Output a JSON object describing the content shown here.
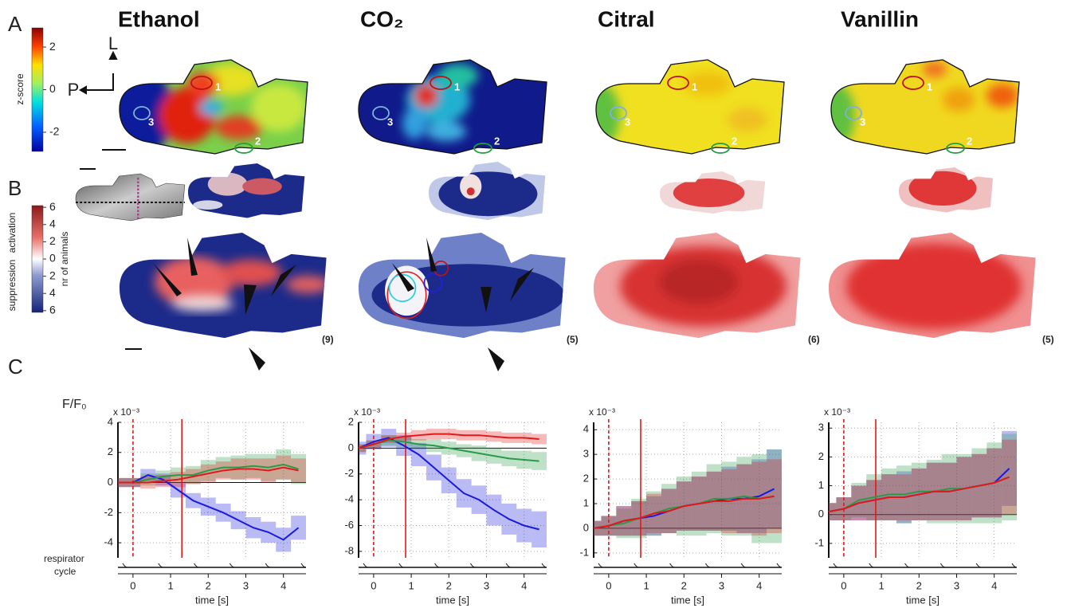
{
  "panel_labels": [
    "A",
    "B",
    "C"
  ],
  "odors": [
    "Ethanol",
    "CO₂",
    "Citral",
    "Vanillin"
  ],
  "orientation": {
    "lateral": "L",
    "posterior": "P"
  },
  "region_labels": [
    "1",
    "2",
    "3"
  ],
  "zscore_colorbar": {
    "label": "z-score",
    "lim": [
      -2.9,
      2.9
    ],
    "ticks": [
      2,
      0,
      -2
    ]
  },
  "animal_colorbar": {
    "label": "nr of animals",
    "suppression": "suppression",
    "activation": "activation",
    "lim": [
      -6.2,
      6.2
    ],
    "ticks": [
      6,
      4,
      2,
      0,
      {
        "value": -2,
        "label": "2"
      },
      {
        "value": -4,
        "label": "4"
      },
      {
        "value": -6,
        "label": "6"
      }
    ]
  },
  "animal_counts": [
    "(9)",
    "(5)",
    "(6)",
    "(5)"
  ],
  "trace_labels": {
    "ylabel": "F/F₀",
    "respirator_cycle": [
      "respirator",
      "cycle"
    ]
  },
  "chart_data": [
    {
      "type": "line",
      "multiplier": "x 10⁻³",
      "xlabel": "time [s]",
      "grid": true,
      "xlim": [
        -0.4,
        4.6
      ],
      "xticks": [
        0,
        1,
        2,
        3,
        4
      ],
      "ylim": [
        -5,
        4
      ],
      "yticks": [
        -4,
        -2,
        0,
        2,
        4
      ],
      "vlines": [
        {
          "x": 0,
          "style": "dashed"
        },
        {
          "x": 1.3,
          "style": "solid"
        }
      ],
      "x": [
        -0.4,
        0,
        0.4,
        0.8,
        1.2,
        1.6,
        2.0,
        2.4,
        2.8,
        3.2,
        3.6,
        4.0,
        4.4
      ],
      "series": [
        {
          "color": "#1a1adf",
          "values": [
            0,
            0,
            0.5,
            0.2,
            -0.5,
            -1.2,
            -1.6,
            -2,
            -2.5,
            -3,
            -3.3,
            -3.8,
            -3
          ],
          "error": [
            0.3,
            0.3,
            0.4,
            0.4,
            0.5,
            0.5,
            0.6,
            0.6,
            0.6,
            0.7,
            0.7,
            0.8,
            0.8
          ]
        },
        {
          "color": "#2a9a4a",
          "values": [
            0,
            0,
            0.2,
            0.4,
            0.5,
            0.5,
            0.8,
            1.0,
            1.0,
            1.1,
            1.0,
            1.2,
            0.9
          ],
          "error": [
            0.3,
            0.3,
            0.4,
            0.4,
            0.5,
            0.6,
            0.7,
            0.7,
            0.8,
            0.8,
            0.9,
            1.0,
            1.0
          ]
        },
        {
          "color": "#e01a1a",
          "values": [
            0,
            0,
            0,
            0.1,
            0.2,
            0.4,
            0.6,
            0.8,
            0.9,
            0.9,
            0.8,
            1.0,
            0.8
          ],
          "error": [
            0.3,
            0.3,
            0.4,
            0.4,
            0.5,
            0.5,
            0.6,
            0.6,
            0.7,
            0.7,
            0.8,
            0.8,
            0.8
          ]
        }
      ]
    },
    {
      "type": "line",
      "multiplier": "x 10⁻³",
      "xlabel": "time [s]",
      "grid": true,
      "xlim": [
        -0.4,
        4.6
      ],
      "xticks": [
        0,
        1,
        2,
        3,
        4
      ],
      "ylim": [
        -8.5,
        2
      ],
      "yticks": [
        -8,
        -6,
        -4,
        -2,
        0,
        2
      ],
      "vlines": [
        {
          "x": 0,
          "style": "dashed"
        },
        {
          "x": 0.85,
          "style": "solid"
        }
      ],
      "x": [
        -0.4,
        0,
        0.4,
        0.8,
        1.2,
        1.6,
        2.0,
        2.4,
        2.8,
        3.2,
        3.6,
        4.0,
        4.4
      ],
      "series": [
        {
          "color": "#1a1adf",
          "values": [
            0,
            0.5,
            0.8,
            0.2,
            -0.5,
            -1.5,
            -2.5,
            -3.5,
            -4,
            -4.8,
            -5.5,
            -6,
            -6.3
          ],
          "error": [
            0.5,
            0.6,
            0.7,
            0.8,
            0.9,
            1.0,
            1.0,
            1.1,
            1.1,
            1.2,
            1.2,
            1.3,
            1.4
          ]
        },
        {
          "color": "#2a9a4a",
          "values": [
            0,
            0.3,
            0.6,
            0.5,
            0.3,
            0.2,
            0,
            -0.2,
            -0.4,
            -0.6,
            -0.8,
            -0.9,
            -1.0
          ],
          "error": [
            0.3,
            0.3,
            0.4,
            0.4,
            0.4,
            0.5,
            0.5,
            0.5,
            0.6,
            0.6,
            0.6,
            0.7,
            0.7
          ]
        },
        {
          "color": "#e01a1a",
          "values": [
            0,
            0.3,
            0.7,
            0.9,
            1.0,
            1.1,
            1.1,
            1.0,
            1.0,
            0.9,
            0.8,
            0.8,
            0.7
          ],
          "error": [
            0.3,
            0.3,
            0.3,
            0.3,
            0.4,
            0.4,
            0.4,
            0.4,
            0.4,
            0.4,
            0.4,
            0.4,
            0.4
          ]
        }
      ]
    },
    {
      "type": "line",
      "multiplier": "x 10⁻³",
      "xlabel": "time [s]",
      "grid": true,
      "xlim": [
        -0.4,
        4.6
      ],
      "xticks": [
        0,
        1,
        2,
        3,
        4
      ],
      "ylim": [
        -1.2,
        4.3
      ],
      "yticks": [
        -1,
        0,
        1,
        2,
        3,
        4
      ],
      "vlines": [
        {
          "x": 0,
          "style": "dashed"
        },
        {
          "x": 0.85,
          "style": "solid"
        }
      ],
      "x": [
        -0.4,
        0,
        0.4,
        0.8,
        1.2,
        1.6,
        2.0,
        2.4,
        2.8,
        3.2,
        3.6,
        4.0,
        4.4
      ],
      "series": [
        {
          "color": "#1a1adf",
          "values": [
            0,
            0.1,
            0.3,
            0.4,
            0.5,
            0.7,
            0.9,
            1.0,
            1.1,
            1.2,
            1.2,
            1.3,
            1.6
          ],
          "error": [
            0.3,
            0.4,
            0.6,
            0.7,
            0.8,
            0.9,
            1.0,
            1.1,
            1.2,
            1.3,
            1.4,
            1.5,
            1.6
          ]
        },
        {
          "color": "#2a9a4a",
          "values": [
            0,
            0.1,
            0.2,
            0.4,
            0.6,
            0.8,
            0.9,
            1.0,
            1.2,
            1.2,
            1.3,
            1.2,
            1.3
          ],
          "error": [
            0.3,
            0.4,
            0.6,
            0.8,
            0.9,
            1.0,
            1.2,
            1.3,
            1.4,
            1.5,
            1.6,
            1.8,
            1.9
          ]
        },
        {
          "color": "#e01a1a",
          "values": [
            0,
            0.1,
            0.3,
            0.4,
            0.6,
            0.7,
            0.9,
            1.0,
            1.1,
            1.1,
            1.2,
            1.2,
            1.3
          ],
          "error": [
            0.3,
            0.4,
            0.6,
            0.7,
            0.8,
            0.9,
            1.0,
            1.1,
            1.2,
            1.3,
            1.4,
            1.5,
            1.5
          ]
        }
      ]
    },
    {
      "type": "line",
      "multiplier": "x 10⁻³",
      "xlabel": "time [s]",
      "grid": true,
      "xlim": [
        -0.4,
        4.6
      ],
      "xticks": [
        0,
        1,
        2,
        3,
        4
      ],
      "ylim": [
        -1.5,
        3.2
      ],
      "yticks": [
        -1,
        0,
        1,
        2,
        3
      ],
      "vlines": [
        {
          "x": 0,
          "style": "dashed"
        },
        {
          "x": 0.85,
          "style": "solid"
        }
      ],
      "x": [
        -0.4,
        0,
        0.4,
        0.8,
        1.2,
        1.6,
        2.0,
        2.4,
        2.8,
        3.2,
        3.6,
        4.0,
        4.4
      ],
      "series": [
        {
          "color": "#1a1adf",
          "values": [
            0.1,
            0.2,
            0.4,
            0.5,
            0.6,
            0.6,
            0.7,
            0.8,
            0.8,
            0.9,
            1.0,
            1.1,
            1.6
          ],
          "error": [
            0.3,
            0.4,
            0.6,
            0.7,
            0.8,
            0.9,
            0.9,
            1.0,
            1.0,
            1.1,
            1.1,
            1.2,
            1.3
          ]
        },
        {
          "color": "#2a9a4a",
          "values": [
            0.1,
            0.2,
            0.5,
            0.6,
            0.7,
            0.7,
            0.8,
            0.8,
            0.9,
            0.9,
            1.0,
            1.1,
            1.3
          ],
          "error": [
            0.3,
            0.4,
            0.6,
            0.8,
            0.9,
            1.0,
            1.0,
            1.1,
            1.2,
            1.2,
            1.3,
            1.4,
            1.5
          ]
        },
        {
          "color": "#e01a1a",
          "values": [
            0.1,
            0.2,
            0.4,
            0.5,
            0.6,
            0.6,
            0.7,
            0.8,
            0.8,
            0.9,
            1.0,
            1.1,
            1.3
          ],
          "error": [
            0.3,
            0.4,
            0.6,
            0.7,
            0.8,
            0.8,
            0.9,
            1.0,
            1.0,
            1.1,
            1.1,
            1.2,
            1.3
          ]
        }
      ]
    }
  ]
}
